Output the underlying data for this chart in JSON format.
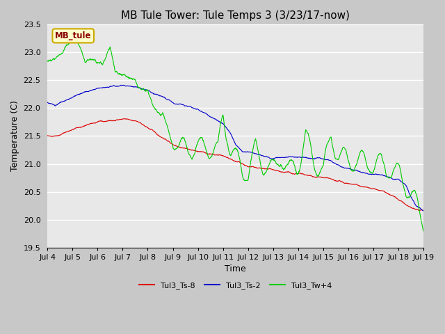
{
  "title": "MB Tule Tower: Tule Temps 3 (3/23/17-now)",
  "xlabel": "Time",
  "ylabel": "Temperature (C)",
  "ylim": [
    19.5,
    23.5
  ],
  "xlim": [
    0,
    15
  ],
  "x_ticks": [
    0,
    1,
    2,
    3,
    4,
    5,
    6,
    7,
    8,
    9,
    10,
    11,
    12,
    13,
    14,
    15
  ],
  "x_tick_labels": [
    "Jul 4",
    "Jul 5",
    "Jul 6",
    "Jul 7",
    "Jul 8",
    "Jul 9",
    "Jul 10",
    "Jul 11",
    "Jul 12",
    "Jul 13",
    "Jul 14",
    "Jul 15",
    "Jul 16",
    "Jul 17",
    "Jul 18",
    "Jul 19"
  ],
  "y_ticks": [
    19.5,
    20.0,
    20.5,
    21.0,
    21.5,
    22.0,
    22.5,
    23.0,
    23.5
  ],
  "colors": {
    "red": "#dd0000",
    "blue": "#0000cc",
    "green": "#00cc00",
    "background": "#e8e8e8",
    "grid": "#ffffff",
    "legend_bg": "#ffffcc",
    "legend_border": "#ccaa00"
  },
  "legend_entries": [
    "Tul3_Ts-8",
    "Tul3_Ts-2",
    "Tul3_Tw+4"
  ],
  "label_box_text": "MB_tule",
  "title_fontsize": 11,
  "axis_fontsize": 9,
  "tick_fontsize": 8
}
